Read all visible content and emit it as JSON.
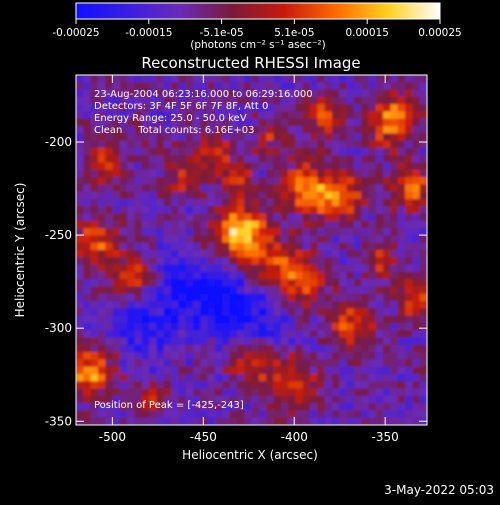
{
  "chart_data": {
    "type": "heatmap",
    "title": "Reconstructed RHESSI Image",
    "colorbar": {
      "ticks": [
        "-0.00025",
        "-0.00015",
        "-5.1e-05",
        "5.1e-05",
        "0.00015",
        "0.00025"
      ],
      "unit_label": "(photons cm⁻² s⁻¹ asec⁻²)",
      "range": [
        -0.00025,
        0.00025
      ],
      "colors": [
        "#1010ff",
        "#3a1ee0",
        "#6a2ab8",
        "#7a1a3a",
        "#c81a0a",
        "#ff6a00",
        "#ffd020",
        "#ffffff"
      ]
    },
    "annotations": [
      "23-Aug-2004 06:23:16.000 to 06:29:16.000",
      "Detectors: 3F 4F 5F 6F 7F 8F, Att 0",
      "Energy Range: 25.0 - 50.0 keV",
      "Clean     Total counts: 6.16E+03"
    ],
    "peak_label": "Position of Peak = [-425,-243]",
    "xlabel": "Heliocentric X (arcsec)",
    "ylabel": "Heliocentric Y (arcsec)",
    "xticks": [
      "-500",
      "-450",
      "-400",
      "-350"
    ],
    "yticks": [
      "-200",
      "-250",
      "-300",
      "-350"
    ],
    "x_tick_values": [
      -500,
      -450,
      -400,
      -350
    ],
    "y_tick_values": [
      -200,
      -250,
      -300,
      -350
    ],
    "xlim": [
      -520,
      -327
    ],
    "ylim": [
      -352,
      -164
    ],
    "peak": [
      -425,
      -243
    ],
    "grid": false
  },
  "footer_timestamp": "3-May-2022 05:03"
}
